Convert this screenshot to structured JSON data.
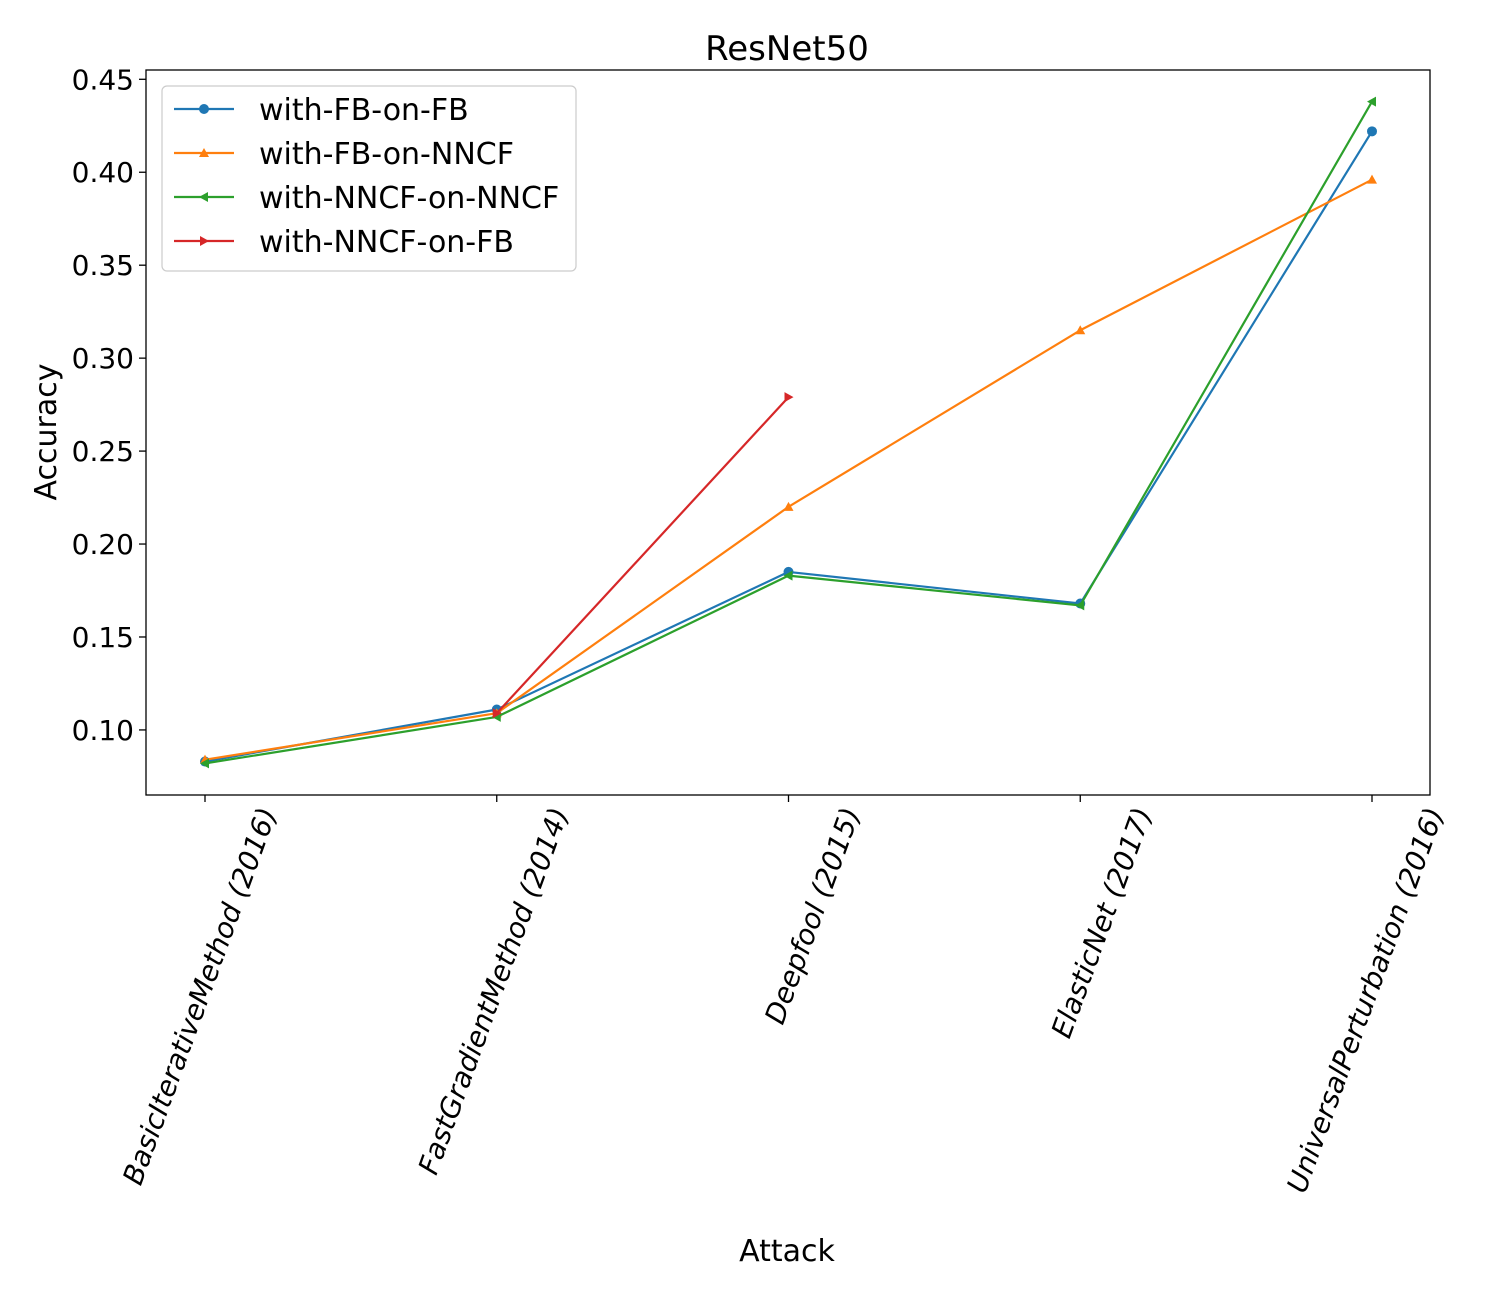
{
  "chart_data": {
    "type": "line",
    "title": "ResNet50",
    "xlabel": "Attack",
    "ylabel": "Accuracy",
    "categories": [
      "BasicIterativeMethod (2016)",
      "FastGradientMethod (2014)",
      "Deepfool (2015)",
      "ElasticNet (2017)",
      "UniversalPerturbation (2016)"
    ],
    "ylim": [
      0.065,
      0.455
    ],
    "yticks": [
      0.1,
      0.15,
      0.2,
      0.25,
      0.3,
      0.35,
      0.4,
      0.45
    ],
    "ytick_labels": [
      "0.10",
      "0.15",
      "0.20",
      "0.25",
      "0.30",
      "0.35",
      "0.40",
      "0.45"
    ],
    "grid": false,
    "legend_position": "top-left",
    "series": [
      {
        "name": "with-FB-on-FB",
        "color": "#1f77b4",
        "marker": "circle",
        "values": [
          0.083,
          0.111,
          0.185,
          0.168,
          0.422
        ]
      },
      {
        "name": "with-FB-on-NNCF",
        "color": "#ff7f0e",
        "marker": "triangle-up",
        "values": [
          0.084,
          0.109,
          0.22,
          0.315,
          0.396
        ]
      },
      {
        "name": "with-NNCF-on-NNCF",
        "color": "#2ca02c",
        "marker": "triangle-left",
        "values": [
          0.082,
          0.107,
          0.183,
          0.167,
          0.438
        ]
      },
      {
        "name": "with-NNCF-on-FB",
        "color": "#d62728",
        "marker": "triangle-right",
        "values": [
          null,
          0.109,
          0.279,
          null,
          null
        ]
      }
    ]
  }
}
